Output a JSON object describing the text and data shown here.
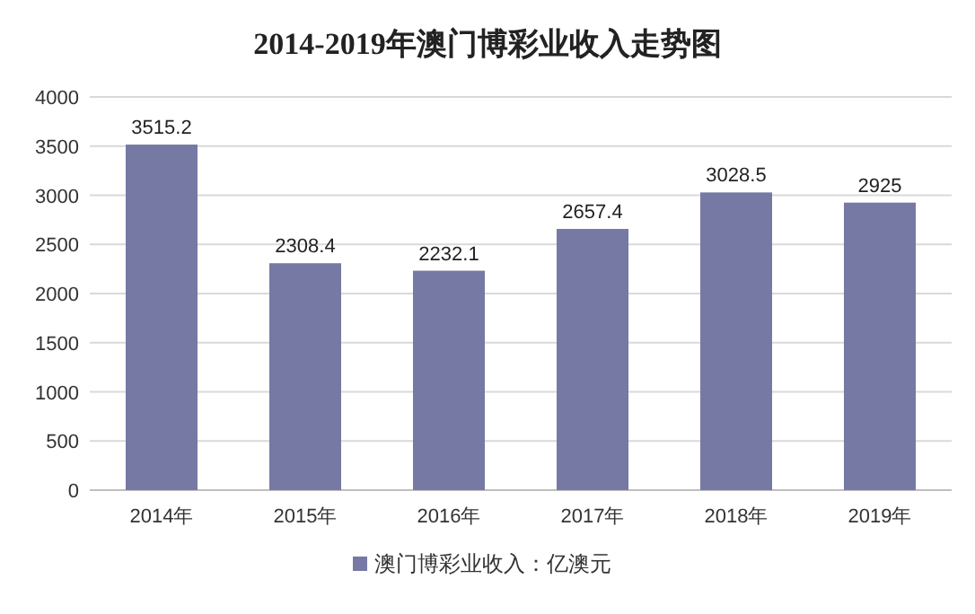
{
  "chart_data": {
    "type": "bar",
    "title": "2014-2019年澳门博彩业收入走势图",
    "categories": [
      "2014年",
      "2015年",
      "2016年",
      "2017年",
      "2018年",
      "2019年"
    ],
    "series": [
      {
        "name": "澳门博彩业收入：亿澳元",
        "color": "#7579a3",
        "values": [
          3515.2,
          2308.4,
          2232.1,
          2657.4,
          3028.5,
          2925
        ]
      }
    ],
    "ylim": [
      0,
      4000
    ],
    "yticks": [
      0,
      500,
      1000,
      1500,
      2000,
      2500,
      3000,
      3500,
      4000
    ],
    "grid": "y",
    "legend": "bottom",
    "data_labels": true
  }
}
